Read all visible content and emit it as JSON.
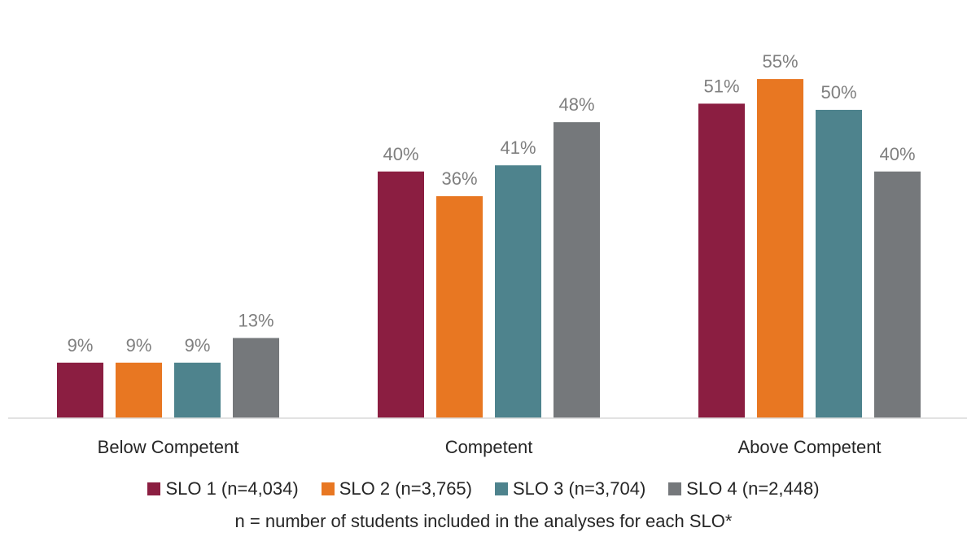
{
  "chart_data": {
    "type": "bar",
    "categories": [
      "Below Competent",
      "Competent",
      "Above Competent"
    ],
    "series": [
      {
        "name": "SLO 1 (n=4,034)",
        "color": "#8b1e41",
        "values": [
          9,
          40,
          51
        ],
        "labels": [
          "9%",
          "40%",
          "51%"
        ]
      },
      {
        "name": "SLO 2 (n=3,765)",
        "color": "#e87722",
        "values": [
          9,
          36,
          55
        ],
        "labels": [
          "9%",
          "36%",
          "55%"
        ]
      },
      {
        "name": "SLO 3 (n=3,704)",
        "color": "#4e838d",
        "values": [
          9,
          41,
          50
        ],
        "labels": [
          "9%",
          "41%",
          "50%"
        ]
      },
      {
        "name": "SLO 4 (n=2,448)",
        "color": "#75787b",
        "values": [
          13,
          48,
          40
        ],
        "labels": [
          "13%",
          "48%",
          "40%"
        ]
      }
    ],
    "ylim": [
      0,
      60
    ],
    "grid": false,
    "legend_position": "bottom",
    "footnote": "n = number of students included in the analyses for each SLO*"
  }
}
